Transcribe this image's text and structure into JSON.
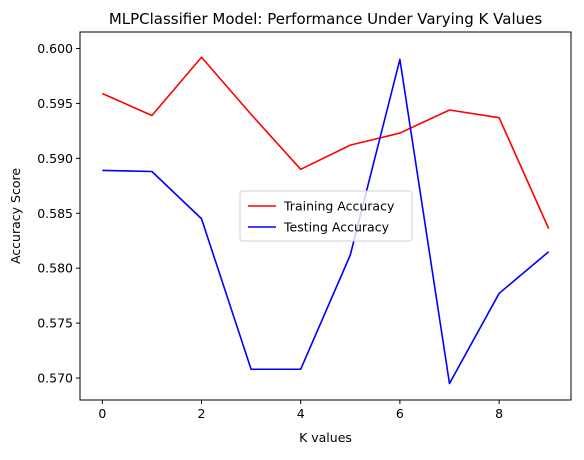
{
  "chart_data": {
    "type": "line",
    "title": "MLPClassifier Model: Performance Under Varying K Values",
    "xlabel": "K values",
    "ylabel": "Accuracy Score",
    "x": [
      0,
      1,
      2,
      3,
      4,
      5,
      6,
      7,
      8,
      9
    ],
    "xlim": [
      -0.45,
      9.45
    ],
    "ylim": [
      0.568,
      0.6015
    ],
    "xticks": [
      0,
      2,
      4,
      6,
      8
    ],
    "yticks": [
      0.57,
      0.575,
      0.58,
      0.585,
      0.59,
      0.595,
      0.6
    ],
    "xtick_labels": [
      "0",
      "2",
      "4",
      "6",
      "8"
    ],
    "ytick_labels": [
      "0.570",
      "0.575",
      "0.580",
      "0.585",
      "0.590",
      "0.595",
      "0.600"
    ],
    "grid": false,
    "legend_position": "center-right",
    "series": [
      {
        "name": "Training Accuracy",
        "color": "#ff0000",
        "values": [
          0.5959,
          0.5939,
          0.5992,
          0.594,
          0.589,
          0.5912,
          0.5923,
          0.5944,
          0.5937,
          0.5836
        ]
      },
      {
        "name": "Testing Accuracy",
        "color": "#0000ff",
        "values": [
          0.5889,
          0.5888,
          0.5845,
          0.5708,
          0.5708,
          0.5812,
          0.599,
          0.5695,
          0.5777,
          0.5815
        ]
      }
    ]
  }
}
